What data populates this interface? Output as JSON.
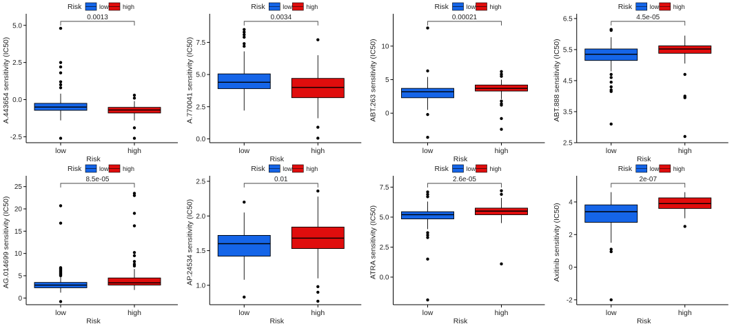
{
  "colors": {
    "low": "#1565e8",
    "high": "#e00d0d",
    "axis": "#000000",
    "text": "#222222"
  },
  "chart_data": [
    {
      "type": "box",
      "legend_title": "Risk",
      "groups": [
        "low",
        "high"
      ],
      "xlabel": "Risk",
      "ylabel": "A.443654 sensitivity (IC50)",
      "ylim": [
        -2.9,
        5.5
      ],
      "yticks": [
        -2.5,
        0,
        2.5,
        5
      ],
      "ytick_labels": [
        "-2.5",
        "0.0",
        "2.5",
        "5.0"
      ],
      "pvalue": "0.0013",
      "boxes": [
        {
          "group": "low",
          "q1": -0.72,
          "median": -0.5,
          "q3": -0.25,
          "wlo": -1.4,
          "whi": 0.4,
          "outliers": [
            4.8,
            2.5,
            2.2,
            1.8,
            1.2,
            1.0,
            0.8,
            -2.6
          ]
        },
        {
          "group": "high",
          "q1": -0.9,
          "median": -0.7,
          "q3": -0.52,
          "wlo": -1.4,
          "whi": -0.1,
          "outliers": [
            0.3,
            0.1,
            -1.9,
            -2.6
          ]
        }
      ]
    },
    {
      "type": "box",
      "legend_title": "Risk",
      "groups": [
        "low",
        "high"
      ],
      "xlabel": "Risk",
      "ylabel": "A.770041 sensitivity (IC50)",
      "ylim": [
        -0.3,
        9.4
      ],
      "yticks": [
        0,
        2.5,
        5,
        7.5
      ],
      "ytick_labels": [
        "0.0",
        "2.5",
        "5.0",
        "7.5"
      ],
      "pvalue": "0.0034",
      "boxes": [
        {
          "group": "low",
          "q1": 3.9,
          "median": 4.4,
          "q3": 5.05,
          "wlo": 2.2,
          "whi": 6.8,
          "outliers": [
            8.5,
            8.3,
            8.1,
            7.9,
            7.4,
            7.2
          ]
        },
        {
          "group": "high",
          "q1": 3.2,
          "median": 4.0,
          "q3": 4.7,
          "wlo": 1.6,
          "whi": 6.5,
          "outliers": [
            7.7,
            0.9,
            0.05
          ]
        }
      ]
    },
    {
      "type": "box",
      "legend_title": "Risk",
      "groups": [
        "low",
        "high"
      ],
      "xlabel": "Risk",
      "ylabel": "ABT.263 sensitivity (IC50)",
      "ylim": [
        -4.4,
        14.2
      ],
      "yticks": [
        0,
        5,
        10
      ],
      "ytick_labels": [
        "0",
        "5",
        "10"
      ],
      "pvalue": "0.00021",
      "boxes": [
        {
          "group": "low",
          "q1": 2.3,
          "median": 3.2,
          "q3": 3.7,
          "wlo": 0.5,
          "whi": 5.4,
          "outliers": [
            12.7,
            6.3,
            -0.2,
            -3.6
          ]
        },
        {
          "group": "high",
          "q1": 3.3,
          "median": 3.7,
          "q3": 4.2,
          "wlo": 2.1,
          "whi": 5.0,
          "outliers": [
            6.2,
            5.8,
            5.5,
            1.8,
            1.4,
            1.2,
            -0.8,
            -2.4
          ]
        }
      ]
    },
    {
      "type": "box",
      "legend_title": "Risk",
      "groups": [
        "low",
        "high"
      ],
      "xlabel": "Risk",
      "ylabel": "ABT.888 sensitivity (IC50)",
      "ylim": [
        2.5,
        6.52
      ],
      "yticks": [
        2.5,
        3.5,
        4.5,
        5.5,
        6.5
      ],
      "ytick_labels": [
        "2.5",
        "3.5",
        "4.5",
        "5.5",
        "6.5"
      ],
      "pvalue": "4.5e-05",
      "boxes": [
        {
          "group": "low",
          "q1": 5.15,
          "median": 5.35,
          "q3": 5.52,
          "wlo": 4.8,
          "whi": 5.9,
          "outliers": [
            6.15,
            6.12,
            4.7,
            4.6,
            4.45,
            4.3,
            4.2,
            4.15,
            3.1
          ]
        },
        {
          "group": "high",
          "q1": 5.38,
          "median": 5.52,
          "q3": 5.62,
          "wlo": 5.05,
          "whi": 5.95,
          "outliers": [
            4.7,
            4.0,
            3.95,
            2.7
          ]
        }
      ]
    },
    {
      "type": "box",
      "legend_title": "Risk",
      "groups": [
        "low",
        "high"
      ],
      "xlabel": "Risk",
      "ylabel": "AG.014699 sensitivity (IC50)",
      "ylim": [
        -1.5,
        26.5
      ],
      "yticks": [
        0,
        5,
        10,
        15,
        20,
        25
      ],
      "ytick_labels": [
        "0",
        "5",
        "10",
        "15",
        "20",
        "25"
      ],
      "pvalue": "8.5e-05",
      "boxes": [
        {
          "group": "low",
          "q1": 2.3,
          "median": 2.9,
          "q3": 3.5,
          "wlo": 1.2,
          "whi": 4.8,
          "outliers": [
            20.7,
            16.8,
            6.8,
            6.6,
            6.4,
            6.2,
            6.0,
            5.8,
            5.6,
            5.4,
            5.2,
            5.0,
            -0.8
          ]
        },
        {
          "group": "high",
          "q1": 2.9,
          "median": 3.4,
          "q3": 4.5,
          "wlo": 1.8,
          "whi": 6.5,
          "outliers": [
            23.5,
            23.0,
            19.0,
            16.2,
            10.2,
            9.5,
            8.2,
            7.6,
            7.2
          ]
        }
      ]
    },
    {
      "type": "box",
      "legend_title": "Risk",
      "groups": [
        "low",
        "high"
      ],
      "xlabel": "Risk",
      "ylabel": "AP.24534 sensitivity (IC50)",
      "ylim": [
        0.72,
        2.52
      ],
      "yticks": [
        1.0,
        1.5,
        2.0,
        2.5
      ],
      "ytick_labels": [
        "1.0",
        "1.5",
        "2.0",
        "2.5"
      ],
      "pvalue": "0.01",
      "boxes": [
        {
          "group": "low",
          "q1": 1.42,
          "median": 1.6,
          "q3": 1.72,
          "wlo": 1.08,
          "whi": 2.05,
          "outliers": [
            2.2,
            0.83
          ]
        },
        {
          "group": "high",
          "q1": 1.53,
          "median": 1.68,
          "q3": 1.84,
          "wlo": 1.1,
          "whi": 2.28,
          "outliers": [
            2.36,
            0.98,
            0.9,
            0.77
          ]
        }
      ]
    },
    {
      "type": "box",
      "legend_title": "Risk",
      "groups": [
        "low",
        "high"
      ],
      "xlabel": "Risk",
      "ylabel": "ATRA sensitivity (IC50)",
      "ylim": [
        -2.3,
        8.1
      ],
      "yticks": [
        0,
        2.5,
        5,
        7.5
      ],
      "ytick_labels": [
        "0.0",
        "2.5",
        "5.0",
        "7.5"
      ],
      "pvalue": "2.6e-05",
      "boxes": [
        {
          "group": "low",
          "q1": 4.85,
          "median": 5.2,
          "q3": 5.45,
          "wlo": 4.0,
          "whi": 6.3,
          "outliers": [
            7.1,
            6.9,
            6.7,
            3.7,
            3.5,
            3.3,
            1.5,
            -1.9
          ]
        },
        {
          "group": "high",
          "q1": 5.2,
          "median": 5.5,
          "q3": 5.75,
          "wlo": 4.5,
          "whi": 6.6,
          "outliers": [
            7.2,
            6.9,
            1.1
          ]
        }
      ]
    },
    {
      "type": "box",
      "legend_title": "Risk",
      "groups": [
        "low",
        "high"
      ],
      "xlabel": "Risk",
      "ylabel": "Axitinib sensitivity (IC50)",
      "ylim": [
        -2.3,
        5.35
      ],
      "yticks": [
        -2,
        0,
        2,
        4
      ],
      "ytick_labels": [
        "-2",
        "0",
        "2",
        "4"
      ],
      "pvalue": "2e-07",
      "boxes": [
        {
          "group": "low",
          "q1": 2.75,
          "median": 3.4,
          "q3": 3.82,
          "wlo": 1.5,
          "whi": 4.6,
          "outliers": [
            1.1,
            0.95,
            -2.0
          ]
        },
        {
          "group": "high",
          "q1": 3.6,
          "median": 3.9,
          "q3": 4.25,
          "wlo": 3.0,
          "whi": 4.6,
          "outliers": [
            2.5
          ]
        }
      ]
    }
  ]
}
